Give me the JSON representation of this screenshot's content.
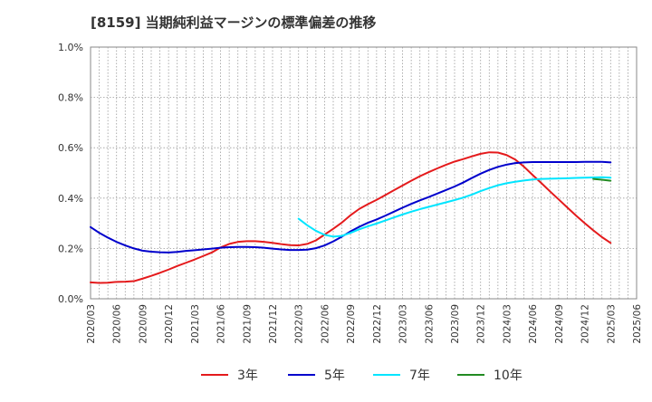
{
  "chart_data": {
    "type": "line",
    "title": "[8159]  当期純利益マージンの標準偏差の推移",
    "xlabel": "",
    "ylabel": "",
    "ylim": [
      0,
      1.0
    ],
    "y_ticks": [
      {
        "value": 0.0,
        "label": "0.0%"
      },
      {
        "value": 0.2,
        "label": "0.2%"
      },
      {
        "value": 0.4,
        "label": "0.4%"
      },
      {
        "value": 0.6,
        "label": "0.6%"
      },
      {
        "value": 0.8,
        "label": "0.8%"
      },
      {
        "value": 1.0,
        "label": "1.0%"
      }
    ],
    "x_ticks": [
      "2020/03",
      "2020/06",
      "2020/09",
      "2020/12",
      "2021/03",
      "2021/06",
      "2021/09",
      "2021/12",
      "2022/03",
      "2022/06",
      "2022/09",
      "2022/12",
      "2023/03",
      "2023/06",
      "2023/09",
      "2023/12",
      "2024/03",
      "2024/06",
      "2024/09",
      "2024/12",
      "2025/03",
      "2025/06"
    ],
    "grid": true,
    "legend_position": "bottom",
    "series": [
      {
        "name": "3年",
        "color": "#e41a1c",
        "points": [
          [
            "2020/03",
            0.065
          ],
          [
            "2020/04",
            0.063
          ],
          [
            "2020/05",
            0.064
          ],
          [
            "2020/06",
            0.067
          ],
          [
            "2020/07",
            0.068
          ],
          [
            "2020/08",
            0.07
          ],
          [
            "2020/09",
            0.08
          ],
          [
            "2020/10",
            0.091
          ],
          [
            "2020/11",
            0.103
          ],
          [
            "2020/12",
            0.116
          ],
          [
            "2021/01",
            0.13
          ],
          [
            "2021/02",
            0.143
          ],
          [
            "2021/03",
            0.156
          ],
          [
            "2021/04",
            0.17
          ],
          [
            "2021/05",
            0.184
          ],
          [
            "2021/06",
            0.204
          ],
          [
            "2021/07",
            0.218
          ],
          [
            "2021/08",
            0.226
          ],
          [
            "2021/09",
            0.229
          ],
          [
            "2021/10",
            0.229
          ],
          [
            "2021/11",
            0.226
          ],
          [
            "2021/12",
            0.222
          ],
          [
            "2022/01",
            0.217
          ],
          [
            "2022/02",
            0.213
          ],
          [
            "2022/03",
            0.212
          ],
          [
            "2022/04",
            0.218
          ],
          [
            "2022/05",
            0.232
          ],
          [
            "2022/06",
            0.255
          ],
          [
            "2022/07",
            0.278
          ],
          [
            "2022/08",
            0.303
          ],
          [
            "2022/09",
            0.332
          ],
          [
            "2022/10",
            0.357
          ],
          [
            "2022/11",
            0.376
          ],
          [
            "2022/12",
            0.393
          ],
          [
            "2023/01",
            0.412
          ],
          [
            "2023/02",
            0.431
          ],
          [
            "2023/03",
            0.45
          ],
          [
            "2023/04",
            0.469
          ],
          [
            "2023/05",
            0.487
          ],
          [
            "2023/06",
            0.503
          ],
          [
            "2023/07",
            0.518
          ],
          [
            "2023/08",
            0.532
          ],
          [
            "2023/09",
            0.545
          ],
          [
            "2023/10",
            0.555
          ],
          [
            "2023/11",
            0.566
          ],
          [
            "2023/12",
            0.576
          ],
          [
            "2024/01",
            0.582
          ],
          [
            "2024/02",
            0.581
          ],
          [
            "2024/03",
            0.571
          ],
          [
            "2024/04",
            0.553
          ],
          [
            "2024/05",
            0.525
          ],
          [
            "2024/06",
            0.492
          ],
          [
            "2024/07",
            0.46
          ],
          [
            "2024/08",
            0.427
          ],
          [
            "2024/09",
            0.395
          ],
          [
            "2024/10",
            0.363
          ],
          [
            "2024/11",
            0.331
          ],
          [
            "2024/12",
            0.301
          ],
          [
            "2025/01",
            0.272
          ],
          [
            "2025/02",
            0.245
          ],
          [
            "2025/03",
            0.222
          ]
        ]
      },
      {
        "name": "5年",
        "color": "#0000cc",
        "points": [
          [
            "2020/03",
            0.285
          ],
          [
            "2020/04",
            0.262
          ],
          [
            "2020/05",
            0.243
          ],
          [
            "2020/06",
            0.226
          ],
          [
            "2020/07",
            0.212
          ],
          [
            "2020/08",
            0.2
          ],
          [
            "2020/09",
            0.191
          ],
          [
            "2020/10",
            0.187
          ],
          [
            "2020/11",
            0.185
          ],
          [
            "2020/12",
            0.184
          ],
          [
            "2021/01",
            0.186
          ],
          [
            "2021/02",
            0.19
          ],
          [
            "2021/03",
            0.193
          ],
          [
            "2021/04",
            0.196
          ],
          [
            "2021/05",
            0.199
          ],
          [
            "2021/06",
            0.203
          ],
          [
            "2021/07",
            0.205
          ],
          [
            "2021/08",
            0.206
          ],
          [
            "2021/09",
            0.206
          ],
          [
            "2021/10",
            0.205
          ],
          [
            "2021/11",
            0.203
          ],
          [
            "2021/12",
            0.199
          ],
          [
            "2022/01",
            0.196
          ],
          [
            "2022/02",
            0.194
          ],
          [
            "2022/03",
            0.194
          ],
          [
            "2022/04",
            0.195
          ],
          [
            "2022/05",
            0.201
          ],
          [
            "2022/06",
            0.212
          ],
          [
            "2022/07",
            0.228
          ],
          [
            "2022/08",
            0.247
          ],
          [
            "2022/09",
            0.268
          ],
          [
            "2022/10",
            0.286
          ],
          [
            "2022/11",
            0.302
          ],
          [
            "2022/12",
            0.315
          ],
          [
            "2023/01",
            0.33
          ],
          [
            "2023/02",
            0.346
          ],
          [
            "2023/03",
            0.362
          ],
          [
            "2023/04",
            0.377
          ],
          [
            "2023/05",
            0.391
          ],
          [
            "2023/06",
            0.404
          ],
          [
            "2023/07",
            0.418
          ],
          [
            "2023/08",
            0.432
          ],
          [
            "2023/09",
            0.446
          ],
          [
            "2023/10",
            0.462
          ],
          [
            "2023/11",
            0.48
          ],
          [
            "2023/12",
            0.497
          ],
          [
            "2024/01",
            0.512
          ],
          [
            "2024/02",
            0.524
          ],
          [
            "2024/03",
            0.533
          ],
          [
            "2024/04",
            0.539
          ],
          [
            "2024/05",
            0.542
          ],
          [
            "2024/06",
            0.543
          ],
          [
            "2024/07",
            0.543
          ],
          [
            "2024/08",
            0.543
          ],
          [
            "2024/09",
            0.543
          ],
          [
            "2024/10",
            0.543
          ],
          [
            "2024/11",
            0.543
          ],
          [
            "2024/12",
            0.544
          ],
          [
            "2025/01",
            0.544
          ],
          [
            "2025/02",
            0.544
          ],
          [
            "2025/03",
            0.542
          ]
        ]
      },
      {
        "name": "7年",
        "color": "#00e5ff",
        "points": [
          [
            "2022/03",
            0.318
          ],
          [
            "2022/04",
            0.292
          ],
          [
            "2022/05",
            0.27
          ],
          [
            "2022/06",
            0.254
          ],
          [
            "2022/07",
            0.247
          ],
          [
            "2022/08",
            0.25
          ],
          [
            "2022/09",
            0.262
          ],
          [
            "2022/10",
            0.276
          ],
          [
            "2022/11",
            0.288
          ],
          [
            "2022/12",
            0.299
          ],
          [
            "2023/01",
            0.311
          ],
          [
            "2023/02",
            0.323
          ],
          [
            "2023/03",
            0.335
          ],
          [
            "2023/04",
            0.346
          ],
          [
            "2023/05",
            0.356
          ],
          [
            "2023/06",
            0.365
          ],
          [
            "2023/07",
            0.374
          ],
          [
            "2023/08",
            0.383
          ],
          [
            "2023/09",
            0.392
          ],
          [
            "2023/10",
            0.402
          ],
          [
            "2023/11",
            0.414
          ],
          [
            "2023/12",
            0.428
          ],
          [
            "2024/01",
            0.44
          ],
          [
            "2024/02",
            0.451
          ],
          [
            "2024/03",
            0.459
          ],
          [
            "2024/04",
            0.465
          ],
          [
            "2024/05",
            0.47
          ],
          [
            "2024/06",
            0.474
          ],
          [
            "2024/07",
            0.476
          ],
          [
            "2024/08",
            0.477
          ],
          [
            "2024/09",
            0.478
          ],
          [
            "2024/10",
            0.479
          ],
          [
            "2024/11",
            0.48
          ],
          [
            "2024/12",
            0.481
          ],
          [
            "2025/01",
            0.482
          ],
          [
            "2025/02",
            0.483
          ],
          [
            "2025/03",
            0.481
          ]
        ]
      },
      {
        "name": "10年",
        "color": "#228b22",
        "points": [
          [
            "2025/01",
            0.476
          ],
          [
            "2025/02",
            0.473
          ],
          [
            "2025/03",
            0.469
          ]
        ]
      }
    ]
  }
}
